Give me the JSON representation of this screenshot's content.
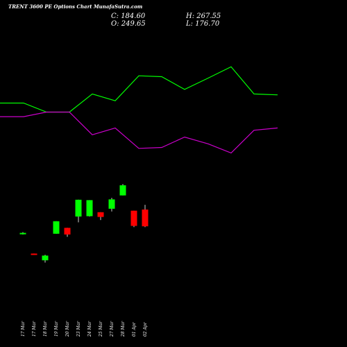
{
  "header": {
    "title": "TRENT 3600  PE Options  Chart MunafaSutra.com",
    "close_label": "C: 184.60",
    "open_label": "O: 249.65",
    "high_label": "H: 267.55",
    "low_label": "L: 176.70"
  },
  "colors": {
    "background": "#000000",
    "up": "#00ff00",
    "down": "#ff0000",
    "line_upper": "#00ff00",
    "line_lower": "#cc00cc",
    "text": "#ffffff"
  },
  "chart_data": [
    {
      "type": "line",
      "description_series": "upper indicator",
      "x": [
        "",
        "17 Mar",
        "18 Mar",
        "19 Mar",
        "20 Mar",
        "24 Mar",
        "25 Mar",
        "27 Mar",
        "28 Mar",
        "01 Apr",
        "02 Apr",
        "",
        ""
      ],
      "series": [
        {
          "values": [
            500,
            500,
            480,
            480,
            520,
            505,
            560,
            558,
            530,
            555,
            580,
            520,
            518
          ]
        },
        {
          "values": [
            470,
            470,
            480,
            480,
            430,
            445,
            400,
            402,
            425,
            410,
            390,
            440,
            445
          ]
        }
      ],
      "ylim": [
        360,
        620
      ]
    },
    {
      "type": "candlestick",
      "categories": [
        "17 Mar",
        "17 Mar",
        "18 Mar",
        "19 Mar",
        "20 Mar",
        "23 Mar",
        "24 Mar",
        "25 Mar",
        "27 Mar",
        "28 Mar",
        "01 Apr",
        "02 Apr"
      ],
      "ohlc": [
        {
          "o": 148,
          "h": 152,
          "l": 146,
          "c": 150
        },
        {
          "o": 97,
          "h": 97,
          "l": 94,
          "c": 95
        },
        {
          "o": 80,
          "h": 94,
          "l": 74,
          "c": 92
        },
        {
          "o": 148,
          "h": 180,
          "l": 148,
          "c": 180
        },
        {
          "o": 163,
          "h": 163,
          "l": 140,
          "c": 146
        },
        {
          "o": 192,
          "h": 235,
          "l": 177,
          "c": 235
        },
        {
          "o": 193,
          "h": 234,
          "l": 192,
          "c": 234
        },
        {
          "o": 203,
          "h": 203,
          "l": 183,
          "c": 191
        },
        {
          "o": 212,
          "h": 240,
          "l": 205,
          "c": 236
        },
        {
          "o": 246,
          "h": 275,
          "l": 246,
          "c": 272
        },
        {
          "o": 207,
          "h": 207,
          "l": 165,
          "c": 168
        },
        {
          "o": 210,
          "h": 222,
          "l": 165,
          "c": 167
        }
      ],
      "ylim": [
        0,
        320
      ]
    }
  ],
  "x_ticks": [
    "17 Mar",
    "17 Mar",
    "18 Mar",
    "19 Mar",
    "20 Mar",
    "23 Mar",
    "24 Mar",
    "25 Mar",
    "27 Mar",
    "28 Mar",
    "01 Apr",
    "02 Apr"
  ]
}
